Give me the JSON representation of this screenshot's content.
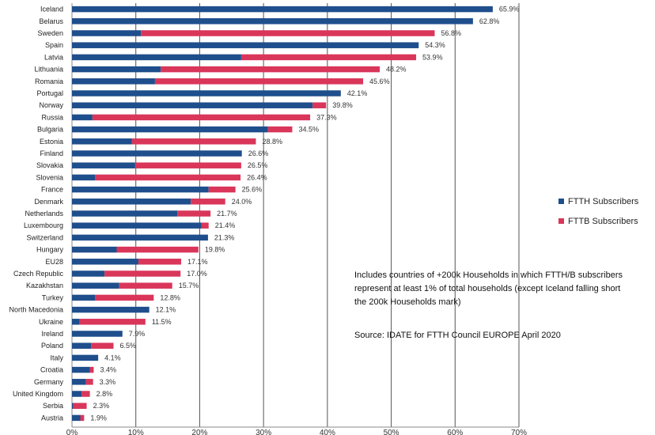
{
  "chart_data": {
    "type": "bar",
    "orientation": "horizontal",
    "stacked": true,
    "categories": [
      "Iceland",
      "Belarus",
      "Sweden",
      "Spain",
      "Latvia",
      "Lithuania",
      "Romania",
      "Portugal",
      "Norway",
      "Russia",
      "Bulgaria",
      "Estonia",
      "Finland",
      "Slovakia",
      "Slovenia",
      "France",
      "Denmark",
      "Netherlands",
      "Luxembourg",
      "Switzerland",
      "Hungary",
      "EU28",
      "Czech Republic",
      "Kazakhstan",
      "Turkey",
      "North Macedonia",
      "Ukraine",
      "Ireland",
      "Poland",
      "Italy",
      "Croatia",
      "Germany",
      "United Kingdom",
      "Serbia",
      "Austria"
    ],
    "series": [
      {
        "name": "FTTH Subscribers",
        "color": "#1f4e8c",
        "values": [
          65.9,
          62.8,
          10.8,
          54.3,
          26.5,
          13.9,
          13.0,
          42.1,
          37.7,
          3.2,
          30.7,
          9.4,
          26.6,
          9.9,
          3.6,
          21.4,
          18.6,
          16.5,
          20.3,
          21.3,
          7.0,
          10.4,
          5.1,
          7.4,
          3.6,
          12.1,
          1.2,
          7.9,
          3.0,
          4.1,
          2.8,
          2.2,
          1.5,
          0.2,
          1.3
        ]
      },
      {
        "name": "FTTB Subscribers",
        "color": "#d9365a",
        "values": [
          0,
          0,
          46.0,
          0,
          27.4,
          34.3,
          32.6,
          0,
          2.1,
          34.1,
          3.8,
          19.4,
          0,
          16.6,
          22.8,
          4.2,
          5.4,
          5.2,
          1.1,
          0,
          12.8,
          6.7,
          11.9,
          8.3,
          9.2,
          0,
          10.3,
          0,
          3.5,
          0,
          0.6,
          1.1,
          1.3,
          2.1,
          0.6
        ]
      }
    ],
    "totals": [
      "65.9%",
      "62.8%",
      "56.8%",
      "54.3%",
      "53.9%",
      "48.2%",
      "45.6%",
      "42.1%",
      "39.8%",
      "37.3%",
      "34.5%",
      "28.8%",
      "26.6%",
      "26.5%",
      "26.4%",
      "25.6%",
      "24.0%",
      "21.7%",
      "21.4%",
      "21.3%",
      "19.8%",
      "17.1%",
      "17.0%",
      "15.7%",
      "12.8%",
      "12.1%",
      "11.5%",
      "7.9%",
      "6.5%",
      "4.1%",
      "3.4%",
      "3.3%",
      "2.8%",
      "2.3%",
      "1.9%"
    ],
    "xlim": [
      0,
      70
    ],
    "x_ticks": [
      "0%",
      "10%",
      "20%",
      "30%",
      "40%",
      "50%",
      "60%",
      "70%"
    ],
    "grid": true,
    "legend_position": "right"
  },
  "note_lines": [
    "Includes countries of +200k Households in which FTTH/B  subscribers",
    "represent at least 1% of total households  (except Iceland falling short",
    "the 200k Households mark)"
  ],
  "source": "Source: IDATE for FTTH Council EUROPE  April 2020"
}
